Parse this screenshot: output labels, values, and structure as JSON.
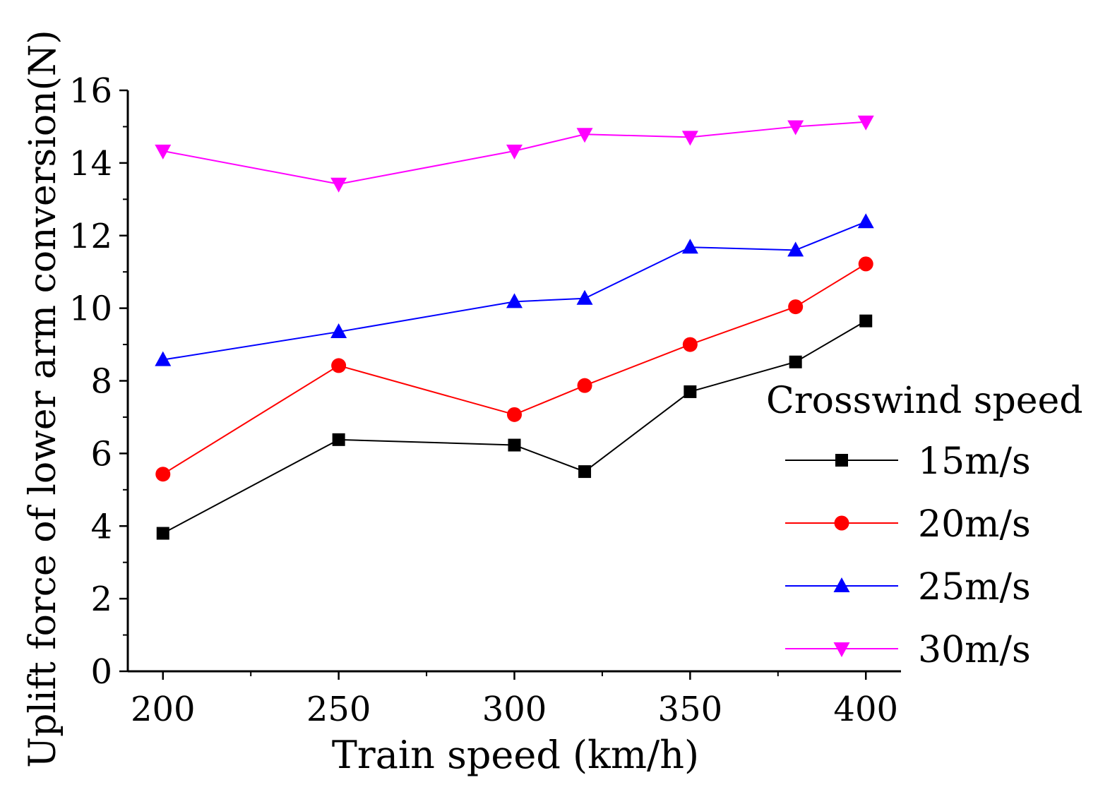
{
  "chart_data": {
    "type": "line",
    "title": "",
    "xlabel": "Train speed (km/h)",
    "ylabel": "Uplift force of lower arm conversion(N)",
    "x": [
      200,
      250,
      300,
      320,
      350,
      380,
      400
    ],
    "xlim": [
      190,
      410
    ],
    "ylim": [
      0,
      16
    ],
    "xticks": [
      200,
      250,
      300,
      350,
      400
    ],
    "xtick_labels": [
      "200",
      "250",
      "300",
      "350",
      "400"
    ],
    "yticks": [
      0,
      2,
      4,
      6,
      8,
      10,
      12,
      14,
      16
    ],
    "ytick_labels": [
      "0",
      "2",
      "4",
      "6",
      "8",
      "10",
      "12",
      "14",
      "16"
    ],
    "legend_title": "Crosswind speed",
    "legend_position": "right",
    "grid": false,
    "series": [
      {
        "name": "15m/s",
        "color": "#000000",
        "marker": "square",
        "values": [
          3.8,
          6.38,
          6.23,
          5.5,
          7.7,
          8.52,
          9.65
        ]
      },
      {
        "name": "20m/s",
        "color": "#ff0000",
        "marker": "circle",
        "values": [
          5.43,
          8.42,
          7.07,
          7.87,
          9.0,
          10.04,
          11.22
        ]
      },
      {
        "name": "25m/s",
        "color": "#0000ff",
        "marker": "triangle-up",
        "values": [
          8.58,
          9.35,
          10.18,
          10.27,
          11.68,
          11.6,
          12.38
        ]
      },
      {
        "name": "30m/s",
        "color": "#ff00ff",
        "marker": "triangle-down",
        "values": [
          14.33,
          13.42,
          14.33,
          14.79,
          14.71,
          15.0,
          15.13
        ]
      }
    ]
  }
}
